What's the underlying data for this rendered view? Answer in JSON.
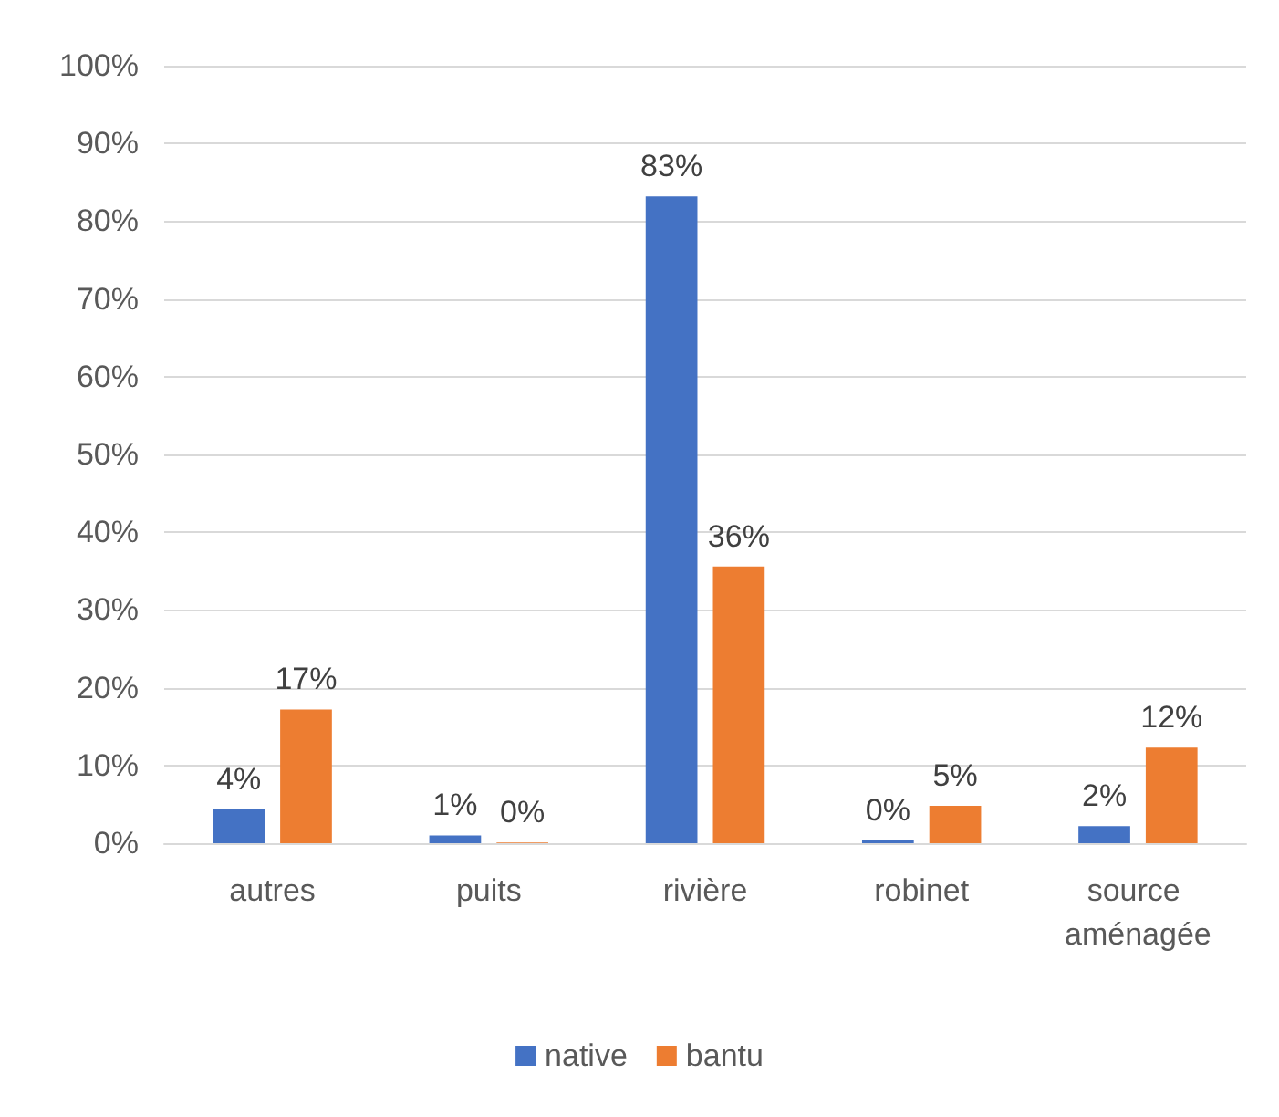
{
  "chart_data": {
    "type": "bar",
    "categories": [
      "autres",
      "puits",
      "rivière",
      "robinet",
      "source aménagée"
    ],
    "series": [
      {
        "name": "native",
        "color": "#4472c4",
        "values": [
          4.4,
          1,
          83.2,
          0.4,
          2.2
        ],
        "value_labels": [
          "4%",
          "1%",
          "83%",
          "0%",
          "2%"
        ]
      },
      {
        "name": "bantu",
        "color": "#ed7d31",
        "values": [
          17.2,
          0.1,
          35.6,
          4.8,
          12.3
        ],
        "value_labels": [
          "17%",
          "0%",
          "36%",
          "5%",
          "12%"
        ]
      }
    ],
    "ylim": [
      0,
      100
    ],
    "yticks": [
      {
        "value": 0,
        "label": "0%"
      },
      {
        "value": 10,
        "label": "10%"
      },
      {
        "value": 20,
        "label": "20%"
      },
      {
        "value": 30,
        "label": "30%"
      },
      {
        "value": 40,
        "label": "40%"
      },
      {
        "value": 50,
        "label": "50%"
      },
      {
        "value": 60,
        "label": "60%"
      },
      {
        "value": 70,
        "label": "70%"
      },
      {
        "value": 80,
        "label": "80%"
      },
      {
        "value": 90,
        "label": "90%"
      },
      {
        "value": 100,
        "label": "100%"
      }
    ],
    "grid": "y",
    "legend": "bottom"
  }
}
